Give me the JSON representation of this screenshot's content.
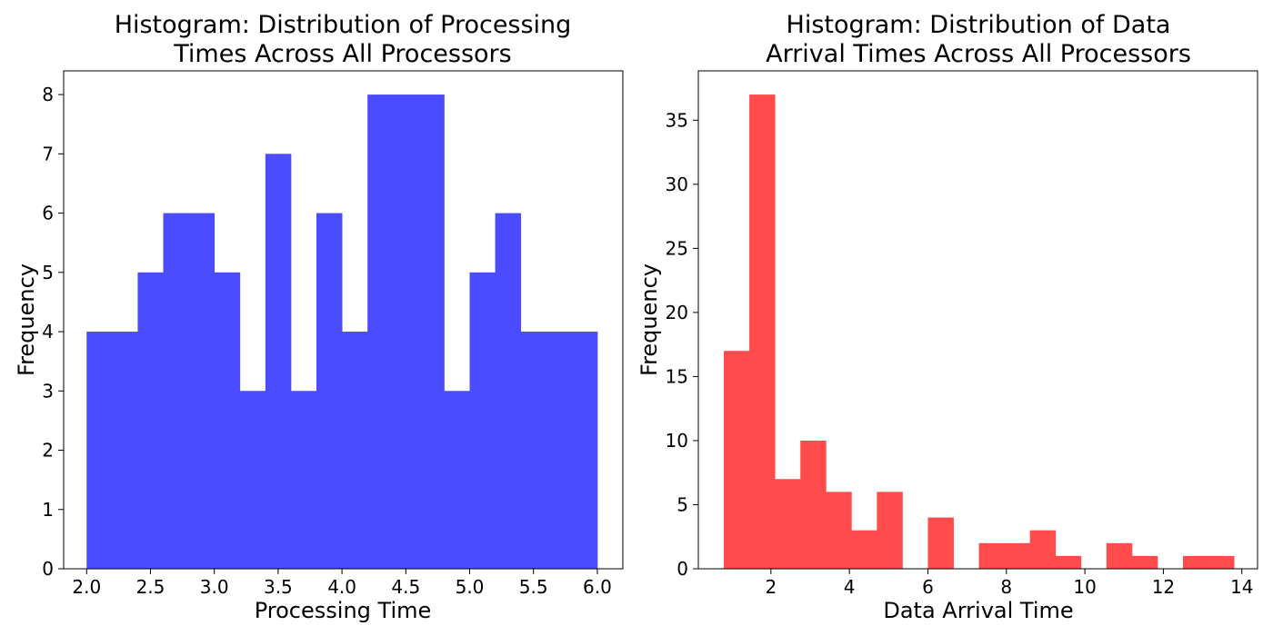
{
  "chart_data": [
    {
      "type": "bar",
      "title_lines": [
        "Histogram: Distribution of Processing",
        "Times Across All Processors"
      ],
      "xlabel": "Processing Time",
      "ylabel": "Frequency",
      "color": "#4b4bff",
      "xlim": [
        1.82,
        6.2
      ],
      "ylim": [
        0,
        8.4
      ],
      "xticks": [
        2.0,
        2.5,
        3.0,
        3.5,
        4.0,
        4.5,
        5.0,
        5.5,
        6.0
      ],
      "xtick_labels": [
        "2.0",
        "2.5",
        "3.0",
        "3.5",
        "4.0",
        "4.5",
        "5.0",
        "5.5",
        "6.0"
      ],
      "yticks": [
        0,
        1,
        2,
        3,
        4,
        5,
        6,
        7,
        8
      ],
      "ytick_labels": [
        "0",
        "1",
        "2",
        "3",
        "4",
        "5",
        "6",
        "7",
        "8"
      ],
      "bins": [
        {
          "x0": 2.0,
          "x1": 2.2,
          "value": 4
        },
        {
          "x0": 2.2,
          "x1": 2.4,
          "value": 4
        },
        {
          "x0": 2.4,
          "x1": 2.6,
          "value": 5
        },
        {
          "x0": 2.6,
          "x1": 2.8,
          "value": 6
        },
        {
          "x0": 2.8,
          "x1": 3.0,
          "value": 6
        },
        {
          "x0": 3.0,
          "x1": 3.2,
          "value": 5
        },
        {
          "x0": 3.2,
          "x1": 3.4,
          "value": 3
        },
        {
          "x0": 3.4,
          "x1": 3.6,
          "value": 7
        },
        {
          "x0": 3.6,
          "x1": 3.8,
          "value": 3
        },
        {
          "x0": 3.8,
          "x1": 4.0,
          "value": 6
        },
        {
          "x0": 4.0,
          "x1": 4.2,
          "value": 4
        },
        {
          "x0": 4.2,
          "x1": 4.4,
          "value": 8
        },
        {
          "x0": 4.4,
          "x1": 4.6,
          "value": 8
        },
        {
          "x0": 4.6,
          "x1": 4.8,
          "value": 8
        },
        {
          "x0": 4.8,
          "x1": 5.0,
          "value": 3
        },
        {
          "x0": 5.0,
          "x1": 5.2,
          "value": 5
        },
        {
          "x0": 5.2,
          "x1": 5.4,
          "value": 6
        },
        {
          "x0": 5.4,
          "x1": 5.6,
          "value": 4
        },
        {
          "x0": 5.6,
          "x1": 5.8,
          "value": 4
        },
        {
          "x0": 5.8,
          "x1": 6.0,
          "value": 4
        }
      ]
    },
    {
      "type": "bar",
      "title_lines": [
        "Histogram: Distribution of Data",
        "Arrival Times Across All Processors"
      ],
      "xlabel": "Data Arrival Time",
      "ylabel": "Frequency",
      "color": "#ff4b4b",
      "xlim": [
        0.15,
        14.4
      ],
      "ylim": [
        0,
        38.85
      ],
      "xticks": [
        2,
        4,
        6,
        8,
        10,
        12,
        14
      ],
      "xtick_labels": [
        "2",
        "4",
        "6",
        "8",
        "10",
        "12",
        "14"
      ],
      "yticks": [
        0,
        5,
        10,
        15,
        20,
        25,
        30,
        35
      ],
      "ytick_labels": [
        "0",
        "5",
        "10",
        "15",
        "20",
        "25",
        "30",
        "35"
      ],
      "bins": [
        {
          "x0": 0.8,
          "x1": 1.45,
          "value": 17
        },
        {
          "x0": 1.45,
          "x1": 2.1,
          "value": 37
        },
        {
          "x0": 2.1,
          "x1": 2.75,
          "value": 7
        },
        {
          "x0": 2.75,
          "x1": 3.4,
          "value": 10
        },
        {
          "x0": 3.4,
          "x1": 4.05,
          "value": 6
        },
        {
          "x0": 4.05,
          "x1": 4.7,
          "value": 3
        },
        {
          "x0": 4.7,
          "x1": 5.35,
          "value": 6
        },
        {
          "x0": 5.35,
          "x1": 6.0,
          "value": 0
        },
        {
          "x0": 6.0,
          "x1": 6.65,
          "value": 4
        },
        {
          "x0": 6.65,
          "x1": 7.3,
          "value": 0
        },
        {
          "x0": 7.3,
          "x1": 7.95,
          "value": 2
        },
        {
          "x0": 7.95,
          "x1": 8.6,
          "value": 2
        },
        {
          "x0": 8.6,
          "x1": 9.25,
          "value": 3
        },
        {
          "x0": 9.25,
          "x1": 9.9,
          "value": 1
        },
        {
          "x0": 9.9,
          "x1": 10.55,
          "value": 0
        },
        {
          "x0": 10.55,
          "x1": 11.2,
          "value": 2
        },
        {
          "x0": 11.2,
          "x1": 11.85,
          "value": 1
        },
        {
          "x0": 11.85,
          "x1": 12.5,
          "value": 0
        },
        {
          "x0": 12.5,
          "x1": 13.15,
          "value": 1
        },
        {
          "x0": 13.15,
          "x1": 13.8,
          "value": 1
        }
      ]
    }
  ]
}
